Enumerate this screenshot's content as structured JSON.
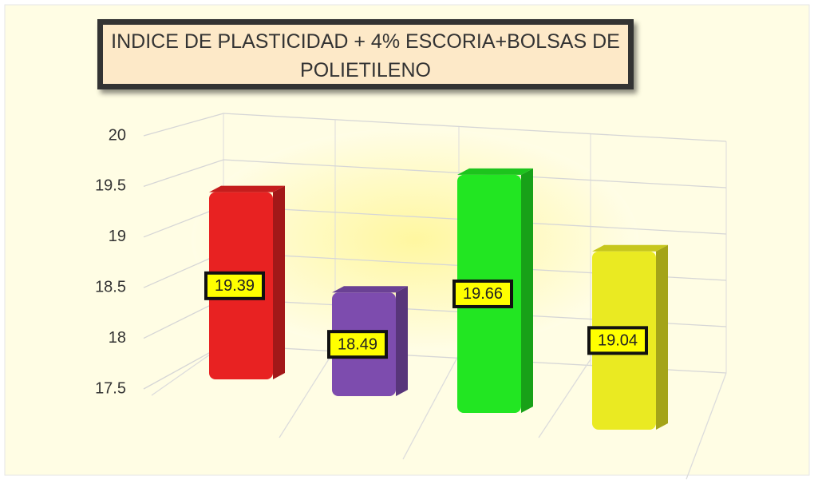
{
  "chart_data": {
    "type": "bar3d",
    "title": "INDICE DE PLASTICIDAD + 4% ESCORIA+BOLSAS DE POLIETILENO",
    "categories": [
      null,
      null,
      null,
      null
    ],
    "values": [
      19.39,
      18.49,
      19.66,
      19.04
    ],
    "colors": [
      "#e82222",
      "#7d4cae",
      "#22e622",
      "#eaea22"
    ],
    "ylim": [
      17.5,
      20
    ],
    "yticks": [
      17.5,
      18,
      18.5,
      19,
      19.5,
      20
    ],
    "grid": true
  }
}
